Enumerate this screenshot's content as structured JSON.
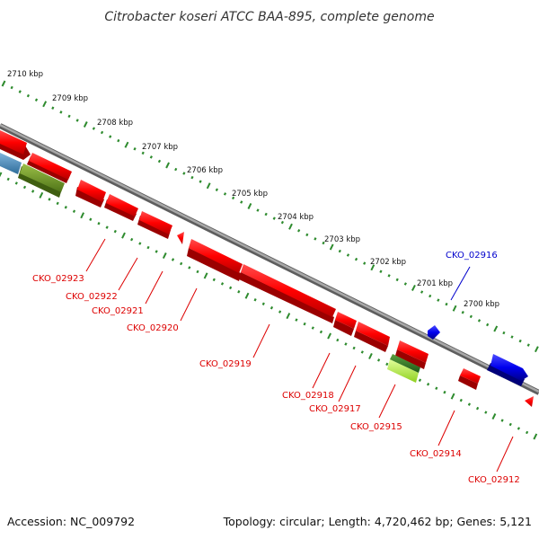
{
  "title": "Citrobacter koseri ATCC BAA-895, complete genome",
  "footer": {
    "accession": "Accession: NC_009792",
    "topology": "Topology: circular; Length: 4,720,462 bp; Genes: 5,121"
  },
  "colors": {
    "background": "#ffffff",
    "backbone": "#8c8c8c",
    "ruler": "#2e8b2e",
    "forward_gene": "#ff0000",
    "reverse_gene": "#ff0000",
    "highlight_gene": "#0000ee",
    "cds_blue": "#4a8fc0",
    "cds_olive": "#6b9a2a",
    "cds_lime": "#b8f048",
    "label_red": "#dd0000",
    "label_blue": "#0000cc"
  },
  "ruler_labels": [
    "2710 kbp",
    "2709 kbp",
    "2708 kbp",
    "2707 kbp",
    "2706 kbp",
    "2705 kbp",
    "2704 kbp",
    "2703 kbp",
    "2702 kbp",
    "2701 kbp",
    "2700 kbp"
  ],
  "gene_labels": [
    "CKO_02923",
    "CKO_02922",
    "CKO_02921",
    "CKO_02920",
    "CKO_02919",
    "CKO_02918",
    "CKO_02917",
    "CKO_02915",
    "CKO_02914",
    "CKO_02912",
    "CKO_02916"
  ]
}
